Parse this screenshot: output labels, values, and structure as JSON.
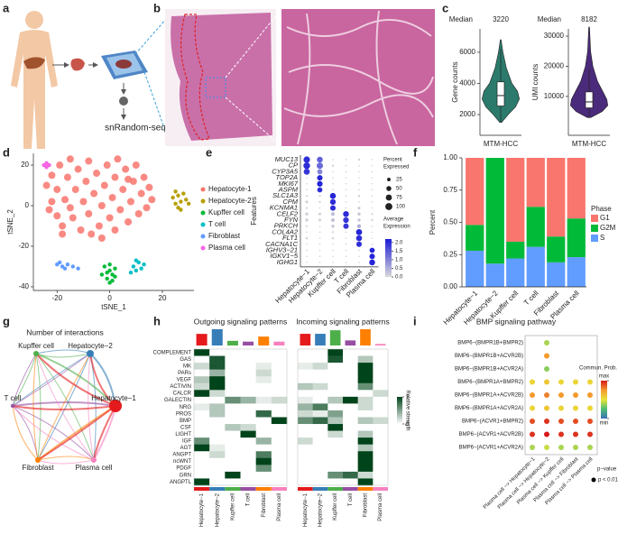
{
  "panel_labels": [
    "a",
    "b",
    "c",
    "d",
    "e",
    "f",
    "g",
    "h",
    "i"
  ],
  "workflow": {
    "label": "snRandom-seq"
  },
  "network": {
    "title": "Number of interactions",
    "nodes": [
      "Hepatocyte−2",
      "Kupffer cell",
      "T cell",
      "Fibroblast",
      "Plasma cell",
      "Hepatocyte−1"
    ]
  },
  "chart_data": [
    {
      "type": "violin",
      "median_label": "Median",
      "median": 3220,
      "ylabel": "Gene counts",
      "categories": [
        "MTM-HCC"
      ],
      "color": "#2b7a6b",
      "ylim": [
        670,
        7500
      ],
      "yticks": [
        2000,
        4000,
        6000
      ],
      "violin_y": [
        1500,
        2000,
        2500,
        3000,
        3500,
        4000,
        5000,
        6000,
        6800
      ],
      "violin_density": [
        0.05,
        0.4,
        0.8,
        1.0,
        0.9,
        0.6,
        0.3,
        0.12,
        0.02
      ],
      "box": [
        2550,
        4100
      ],
      "whiskers": [
        1500,
        6200
      ]
    },
    {
      "type": "violin",
      "median_label": "Median",
      "median": 8182,
      "ylabel": "UMI counts",
      "categories": [
        "MTM-HCC"
      ],
      "color": "#4a2a7a",
      "ylim": [
        -2900,
        32400
      ],
      "yticks": [
        10000,
        20000,
        30000
      ],
      "violin_y": [
        3000,
        5000,
        7000,
        9000,
        12000,
        15000,
        20000,
        25000,
        33000
      ],
      "violin_density": [
        0.1,
        0.7,
        1.0,
        0.95,
        0.7,
        0.45,
        0.2,
        0.08,
        0.02
      ],
      "box": [
        6200,
        11500
      ],
      "whiskers": [
        3000,
        19000
      ]
    },
    {
      "type": "scatter",
      "xlabel": "tSNE_1",
      "ylabel": "tSNE_2",
      "xlim": [
        -29,
        32
      ],
      "ylim": [
        -41.8,
        25.8
      ],
      "xticks": [
        -20,
        0,
        20
      ],
      "yticks": [
        20,
        0,
        -20,
        -40
      ],
      "series": [
        {
          "name": "Hepatocyte-1",
          "color": "#f8766d",
          "x": [
            -24,
            -22,
            -22,
            -20,
            -20,
            -19,
            -18,
            -17,
            -16,
            -15,
            -14,
            -13,
            -12,
            -11,
            -10,
            -9,
            -8,
            -8,
            -6,
            -5,
            -4,
            -3,
            -2,
            -1,
            0,
            1,
            2,
            3,
            4,
            5,
            6,
            7,
            8,
            9,
            10,
            11,
            12,
            13,
            14,
            15,
            16,
            -23,
            -18,
            -7,
            2,
            -15,
            -3,
            7
          ],
          "y": [
            10,
            2,
            15,
            -5,
            8,
            20,
            -10,
            3,
            14,
            23,
            -6,
            8,
            18,
            -12,
            2,
            12,
            22,
            -4,
            6,
            16,
            -10,
            0,
            10,
            20,
            -6,
            4,
            14,
            23,
            -2,
            8,
            18,
            -8,
            2,
            12,
            20,
            -4,
            6,
            14,
            -1,
            9,
            3,
            -2,
            -14,
            -14,
            -12,
            -1,
            -16,
            13
          ]
        },
        {
          "name": "Hepatocyte-2",
          "color": "#b79f00",
          "x": [
            24,
            25,
            26,
            27,
            28,
            26,
            29,
            25,
            27,
            30
          ],
          "y": [
            4,
            1,
            5,
            2,
            6,
            -1,
            3,
            7,
            -2,
            1
          ]
        },
        {
          "name": "Kupffer cell",
          "color": "#00ba38",
          "x": [
            -2,
            0,
            1,
            -1,
            0,
            2,
            -3,
            1,
            -1,
            0,
            2
          ],
          "y": [
            -30,
            -32,
            -34,
            -36,
            -38,
            -31,
            -34,
            -37,
            -33,
            -29,
            -35
          ]
        },
        {
          "name": "T cell",
          "color": "#00bfc4",
          "x": [
            9,
            10,
            11,
            12,
            10,
            13,
            8
          ],
          "y": [
            -30,
            -32,
            -28,
            -31,
            -27,
            -29,
            -33
          ]
        },
        {
          "name": "Fibroblast",
          "color": "#619cff",
          "x": [
            -20,
            -18,
            -16,
            -17,
            -14,
            -19,
            -12
          ],
          "y": [
            -29,
            -30,
            -29,
            -31,
            -30,
            -28,
            -31
          ]
        },
        {
          "name": "Plasma cell",
          "color": "#f564e3",
          "x": [
            -25,
            -24,
            -24,
            -23
          ],
          "y": [
            20,
            21,
            19,
            20
          ]
        }
      ]
    },
    {
      "type": "dotplot",
      "ylabel": "Features",
      "rows": [
        "MUC13",
        "CP",
        "CYP3A5",
        "TOP2A",
        "MKI67",
        "ASPM",
        "SLC1A3",
        "CPM",
        "KCNMA1",
        "CELF2",
        "FYN",
        "PRKCH",
        "COL4A2",
        "FLT1",
        "CACNA1C",
        "IGHV3−21",
        "IGKV1−5",
        "IGHG1"
      ],
      "categories": [
        "Hepatocyte−1",
        "Hepatocyte−2",
        "Kupffer cell",
        "T cell",
        "Fibroblast",
        "Plasma cell"
      ],
      "color_values": [
        [
          2.0,
          1.4,
          0,
          0,
          0.1,
          0
        ],
        [
          2.0,
          1.3,
          0.1,
          0,
          0,
          0
        ],
        [
          1.9,
          1.0,
          0,
          0,
          0,
          0
        ],
        [
          0,
          2.1,
          0,
          0,
          0,
          0
        ],
        [
          0,
          2.1,
          0,
          0,
          0,
          0
        ],
        [
          0,
          2.0,
          0,
          0,
          0,
          0
        ],
        [
          0,
          0,
          2.1,
          0,
          0.1,
          0
        ],
        [
          0.1,
          0,
          2.0,
          0,
          0,
          0
        ],
        [
          0,
          0,
          2.0,
          0,
          0.2,
          0
        ],
        [
          0.1,
          0.1,
          0.3,
          2.0,
          0.2,
          0
        ],
        [
          0.1,
          0.1,
          0.3,
          1.9,
          0.2,
          0.1
        ],
        [
          0,
          0,
          0.2,
          1.9,
          0.5,
          0
        ],
        [
          0,
          0,
          0,
          0,
          2.1,
          0
        ],
        [
          0.1,
          0,
          0.1,
          0,
          2.0,
          0
        ],
        [
          0,
          0,
          0,
          0,
          2.0,
          0
        ],
        [
          0,
          0,
          0,
          0,
          0,
          2.1
        ],
        [
          0,
          0,
          0,
          0,
          0,
          2.1
        ],
        [
          0,
          0,
          0,
          0,
          0,
          2.1
        ]
      ],
      "size_values": [
        [
          85,
          70,
          5,
          5,
          10,
          5
        ],
        [
          90,
          80,
          10,
          5,
          5,
          5
        ],
        [
          75,
          55,
          5,
          5,
          5,
          5
        ],
        [
          5,
          60,
          5,
          5,
          5,
          5
        ],
        [
          5,
          65,
          5,
          5,
          5,
          5
        ],
        [
          5,
          55,
          5,
          5,
          5,
          5
        ],
        [
          10,
          10,
          70,
          5,
          10,
          5
        ],
        [
          15,
          10,
          65,
          5,
          5,
          5
        ],
        [
          10,
          5,
          60,
          5,
          15,
          5
        ],
        [
          20,
          15,
          30,
          70,
          20,
          10
        ],
        [
          20,
          15,
          25,
          65,
          20,
          10
        ],
        [
          10,
          5,
          20,
          60,
          30,
          5
        ],
        [
          5,
          5,
          10,
          5,
          75,
          5
        ],
        [
          10,
          5,
          10,
          5,
          70,
          5
        ],
        [
          5,
          5,
          5,
          5,
          60,
          5
        ],
        [
          5,
          5,
          5,
          5,
          5,
          55
        ],
        [
          5,
          5,
          5,
          5,
          5,
          60
        ],
        [
          5,
          5,
          5,
          5,
          5,
          70
        ]
      ],
      "color_lim": [
        0,
        2.2
      ],
      "colors": [
        "#d9d9d9",
        "#1c1cd8"
      ],
      "size_lim": [
        0,
        100
      ],
      "size_title": [
        "Percent",
        "Expressed"
      ],
      "size_ticks": [
        25,
        50,
        75,
        100
      ],
      "colorbar_title": [
        "Average",
        "Expression"
      ],
      "colorbar_ticks": [
        {
          "value": 2,
          "label": "2.0"
        },
        1.5,
        {
          "value": 1,
          "label": "1.0"
        },
        0.5,
        {
          "value": 0,
          "label": "0.0"
        }
      ]
    },
    {
      "type": "stacked_bar",
      "ylabel": "Percent",
      "legend_title": "Phase",
      "categories": [
        "Hepatocyte−1",
        "Hepatocyte−2",
        "Kupffer cell",
        "T cell",
        "Fibroblast",
        "Plasma cell"
      ],
      "ylim": [
        0,
        1
      ],
      "yticks": [
        {
          "value": 0,
          "label": "0.00"
        },
        {
          "value": 0.25,
          "label": "0.25"
        },
        {
          "value": 0.5,
          "label": "0.50"
        },
        {
          "value": 0.75,
          "label": "0.75"
        },
        {
          "value": 1,
          "label": "1.00"
        }
      ],
      "series": [
        {
          "name": "G1",
          "color": "#f8766d",
          "values": [
            0.52,
            0,
            0.65,
            0.38,
            0.61,
            0.47
          ]
        },
        {
          "name": "G2M",
          "color": "#00ba38",
          "values": [
            0.2,
            0.82,
            0.13,
            0.31,
            0.2,
            0.3
          ]
        },
        {
          "name": "S",
          "color": "#619cff",
          "values": [
            0.28,
            0.18,
            0.22,
            0.31,
            0.19,
            0.23
          ]
        }
      ]
    },
    {
      "type": "heatmap",
      "title": "Outgoing signaling patterns",
      "rows": [
        "COMPLEMENT",
        "GAS",
        "MK",
        "PARs",
        "VEGF",
        "ACTIVIN",
        "CALCR",
        "GALECTIN",
        "NRG",
        "PROS",
        "BMP",
        "CSF",
        "LIGHT",
        "IGF",
        "AGT",
        "ANGPT",
        "ncWNT",
        "PDGF",
        "GRN",
        "ANGPTL"
      ],
      "categories": [
        "Hepatocyte−1",
        "Hepatocyte−2",
        "Kupffer cell",
        "T cell",
        "Fibroblast",
        "Plasma cell"
      ],
      "column_colors": [
        "#e41a1c",
        "#377eb8",
        "#4daf4a",
        "#984ea3",
        "#ff7f00",
        "#f781bf"
      ],
      "colors": [
        "#ffffff",
        "#00441b"
      ],
      "color_lim": [
        0,
        1
      ],
      "totals": [
        3.0,
        4.2,
        1.2,
        1.0,
        2.3,
        1.0
      ],
      "matrix": [
        [
          1,
          0,
          0,
          0,
          0,
          0
        ],
        [
          0,
          0.9,
          0,
          0,
          0,
          0
        ],
        [
          0.2,
          0.9,
          0,
          0,
          0.1,
          0
        ],
        [
          0,
          0.4,
          0,
          0,
          0.2,
          0
        ],
        [
          0.3,
          1,
          0,
          0,
          0.1,
          0
        ],
        [
          0.2,
          1,
          0,
          0,
          0,
          0
        ],
        [
          1,
          0.2,
          0,
          0,
          0,
          0
        ],
        [
          0,
          0,
          0.6,
          0.4,
          0.1,
          0.2
        ],
        [
          0.1,
          0.3,
          0,
          0,
          0,
          0
        ],
        [
          0,
          0.3,
          0,
          0,
          0.8,
          0
        ],
        [
          0,
          0,
          0,
          0,
          0,
          1
        ],
        [
          0,
          0,
          0.3,
          0.2,
          0,
          0
        ],
        [
          0,
          0,
          0,
          1,
          0,
          0
        ],
        [
          0.6,
          0,
          0,
          0,
          0.4,
          0
        ],
        [
          1,
          0.1,
          0,
          0,
          0,
          0
        ],
        [
          0,
          0.2,
          0,
          0,
          0.7,
          0
        ],
        [
          0,
          0,
          0,
          0,
          1,
          0
        ],
        [
          0,
          0,
          0,
          0,
          0.6,
          0
        ],
        [
          0,
          0,
          1,
          0,
          0,
          0
        ],
        [
          1,
          0,
          0,
          0,
          0,
          0
        ]
      ]
    },
    {
      "type": "heatmap",
      "title": "Incoming signaling patterns",
      "categories": [
        "Hepatocyte−1",
        "Hepatocyte−2",
        "Kupffer cell",
        "T cell",
        "Fibroblast",
        "Plasma cell"
      ],
      "column_colors": [
        "#e41a1c",
        "#377eb8",
        "#4daf4a",
        "#984ea3",
        "#ff7f00",
        "#f781bf"
      ],
      "colors": [
        "#ffffff",
        "#00441b"
      ],
      "color_lim": [
        0,
        1
      ],
      "colorbar_title": "Relative strength",
      "colorbar_ticks": [
        0,
        1
      ],
      "totals": [
        2.3,
        2.3,
        3.0,
        1.0,
        3.2,
        0.3
      ],
      "matrix": [
        [
          0,
          0,
          1,
          0,
          0,
          0
        ],
        [
          0,
          0,
          0.9,
          0,
          0.3,
          0
        ],
        [
          0.1,
          0.2,
          0,
          0,
          1,
          0
        ],
        [
          0,
          0,
          0,
          0,
          1,
          0
        ],
        [
          0,
          0,
          0,
          0,
          1,
          0
        ],
        [
          0.3,
          0.2,
          0,
          0,
          0.6,
          0
        ],
        [
          0,
          0,
          0,
          0,
          0,
          0.2
        ],
        [
          0.1,
          0,
          0.3,
          1,
          0.2,
          0
        ],
        [
          0.4,
          0.7,
          0,
          0,
          0.2,
          0
        ],
        [
          0.2,
          0.1,
          0.5,
          0,
          0,
          0
        ],
        [
          0.6,
          0.8,
          0.3,
          0,
          0.3,
          0.2
        ],
        [
          0,
          0,
          1,
          0,
          0,
          0
        ],
        [
          0,
          0,
          0.2,
          0,
          0.3,
          0
        ],
        [
          0.2,
          0,
          0,
          0,
          1,
          0
        ],
        [
          0,
          0,
          0,
          0,
          0.3,
          0
        ],
        [
          0,
          0,
          0,
          0,
          1,
          0
        ],
        [
          0,
          0,
          0,
          0,
          1,
          0
        ],
        [
          0,
          0,
          0,
          0,
          1,
          0
        ],
        [
          0,
          0,
          0.6,
          0.8,
          0.2,
          0
        ],
        [
          0,
          0,
          0,
          0,
          1,
          0
        ]
      ]
    },
    {
      "type": "dotplot",
      "title": "BMP signaling pathway",
      "rows": [
        "BMP6−(BMPR1B+BMPR2)",
        "BMP6−(BMPR1B+ACVR2B)",
        "BMP6−(BMPR1B+ACVR2A)",
        "BMP6−(BMPR1A+BMPR2)",
        "BMP6−(BMPR1A+ACVR2B)",
        "BMP6−(BMPR1A+ACVR2A)",
        "BMP6−(ACVR1+BMPR2)",
        "BMP6−(ACVR1+ACVR2B)",
        "BMP6−(ACVR1+ACVR2A)"
      ],
      "categories": [
        "Plasma cell −> Hepatocyte−1",
        "Plasma cell −> Hepatocyte−2",
        "Plasma cell −> Kupffer cell",
        "Plasma cell −> Fibroblast",
        "Plasma cell −> Plasma cell"
      ],
      "color_values": [
        [
          null,
          0.4,
          null,
          null,
          null
        ],
        [
          null,
          0.75,
          null,
          null,
          null
        ],
        [
          null,
          0.35,
          null,
          null,
          null
        ],
        [
          0.55,
          0.6,
          0.55,
          0.55,
          0.55
        ],
        [
          0.75,
          0.8,
          0.75,
          0.75,
          0.75
        ],
        [
          0.55,
          0.6,
          0.55,
          0.55,
          0.55
        ],
        [
          0.9,
          0.95,
          0.9,
          0.9,
          0.9
        ],
        [
          0.95,
          1.0,
          0.95,
          0.95,
          0.95
        ],
        [
          0.4,
          0.45,
          0.4,
          0.4,
          0.4
        ]
      ],
      "color_lim": [
        0,
        1
      ],
      "colors": [
        "#3a6fb5",
        "#4dbd74",
        "#e8e43a",
        "#f59a2c",
        "#d7191c"
      ],
      "colorbar_title": [
        "Commun. Prob."
      ],
      "colorbar_ticks": [
        {
          "value": 1,
          "label": "max"
        },
        {
          "value": 0,
          "label": "min"
        }
      ],
      "pvalue_title": "p−value",
      "pvalue_label": "p < 0.01"
    }
  ]
}
